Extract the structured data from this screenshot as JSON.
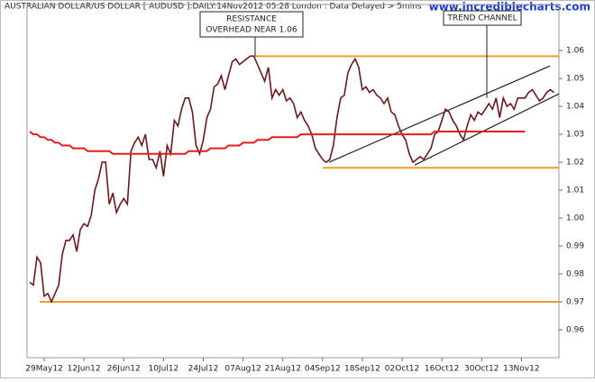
{
  "chart_data": {
    "type": "line",
    "title": "AUSTRALIAN DOLLAR/US DOLLAR [ AUDUSD ]:DAILY:14Nov2012 05:28 London : Data Delayed > 5mins",
    "watermark": "www.incrediblecharts.com",
    "categories": [
      null,
      null,
      null,
      null,
      "29May12",
      null,
      null,
      null,
      null,
      null,
      null,
      null,
      null,
      null,
      null,
      "12Jun12",
      null,
      null,
      null,
      null,
      null,
      null,
      null,
      null,
      null,
      null,
      "26Jun12",
      null,
      null,
      null,
      null,
      null,
      null,
      null,
      null,
      null,
      null,
      "10Jul12",
      null,
      null,
      null,
      null,
      null,
      null,
      null,
      null,
      null,
      null,
      "24Jul12",
      null,
      null,
      null,
      null,
      null,
      null,
      null,
      null,
      null,
      null,
      "07Aug12",
      null,
      null,
      null,
      null,
      null,
      null,
      null,
      null,
      null,
      null,
      "21Aug12",
      null,
      null,
      null,
      null,
      null,
      null,
      null,
      null,
      null,
      null,
      "04Sep12",
      null,
      null,
      null,
      null,
      null,
      null,
      null,
      null,
      null,
      null,
      "18Sep12",
      null,
      null,
      null,
      null,
      null,
      null,
      null,
      null,
      null,
      null,
      "02Oct12",
      null,
      null,
      null,
      null,
      null,
      null,
      null,
      null,
      null,
      null,
      "16Oct12",
      null,
      null,
      null,
      null,
      null,
      null,
      null,
      null,
      null,
      null,
      "30Oct12",
      null,
      null,
      null,
      null,
      null,
      null,
      null,
      null,
      null,
      null,
      "13Nov12",
      null,
      null,
      null,
      null,
      null,
      null,
      null,
      null,
      null
    ],
    "series": [
      {
        "color": "#6b1a1a",
        "values": [
          0.977,
          0.976,
          0.986,
          0.984,
          0.972,
          0.973,
          0.97,
          0.973,
          0.976,
          0.987,
          0.992,
          0.992,
          0.994,
          0.988,
          0.996,
          0.998,
          0.997,
          1.001,
          1.01,
          1.014,
          1.02,
          1.02,
          1.005,
          1.009,
          1.002,
          1.005,
          1.007,
          1.005,
          1.024,
          1.027,
          1.029,
          1.026,
          1.03,
          1.021,
          1.021,
          1.018,
          1.024,
          1.015,
          1.026,
          1.023,
          1.035,
          1.033,
          1.039,
          1.043,
          1.043,
          1.038,
          1.026,
          1.023,
          1.028,
          1.036,
          1.039,
          1.047,
          1.048,
          1.051,
          1.046,
          1.051,
          1.056,
          1.057,
          1.055,
          1.056,
          1.057,
          1.058,
          1.058,
          1.055,
          1.052,
          1.049,
          1.054,
          1.043,
          1.046,
          1.044,
          1.046,
          1.042,
          1.043,
          1.041,
          1.036,
          1.038,
          1.035,
          1.033,
          1.03,
          1.025,
          1.023,
          1.021,
          1.02,
          1.021,
          1.026,
          1.036,
          1.043,
          1.044,
          1.052,
          1.055,
          1.057,
          1.054,
          1.046,
          1.047,
          1.045,
          1.046,
          1.044,
          1.043,
          1.041,
          1.043,
          1.038,
          1.037,
          1.033,
          1.03,
          1.028,
          1.023,
          1.02,
          1.021,
          1.022,
          1.021,
          1.023,
          1.025,
          1.03,
          1.031,
          1.035,
          1.039,
          1.038,
          1.035,
          1.033,
          1.03,
          1.028,
          1.033,
          1.037,
          1.035,
          1.038,
          1.037,
          1.039,
          1.041,
          1.039,
          1.043,
          1.036,
          1.043,
          1.04,
          1.041,
          1.039,
          1.043,
          1.043,
          1.043,
          1.045,
          1.046,
          1.044,
          1.042,
          1.043,
          1.045,
          1.046,
          1.045
        ]
      },
      {
        "color": "#e01e1e",
        "values": [
          1.031,
          1.03,
          1.03,
          1.029,
          1.029,
          1.028,
          1.028,
          1.027,
          1.027,
          1.026,
          1.026,
          1.026,
          1.025,
          1.025,
          1.025,
          1.025,
          1.024,
          1.024,
          1.024,
          1.024,
          1.024,
          1.024,
          1.024,
          1.023,
          1.023,
          1.023,
          1.023,
          1.023,
          1.023,
          1.023,
          1.023,
          1.023,
          1.023,
          1.023,
          1.023,
          1.023,
          1.023,
          1.023,
          1.023,
          1.023,
          1.023,
          1.023,
          1.023,
          1.023,
          1.024,
          1.024,
          1.024,
          1.024,
          1.024,
          1.024,
          1.025,
          1.025,
          1.025,
          1.025,
          1.025,
          1.026,
          1.026,
          1.026,
          1.026,
          1.027,
          1.027,
          1.027,
          1.027,
          1.028,
          1.028,
          1.028,
          1.028,
          1.029,
          1.029,
          1.029,
          1.029,
          1.029,
          1.029,
          1.029,
          1.029,
          1.03,
          1.03,
          1.03,
          1.03,
          1.03,
          1.03,
          1.03,
          1.03,
          1.03,
          1.03,
          1.03,
          1.03,
          1.03,
          1.03,
          1.03,
          1.03,
          1.03,
          1.03,
          1.03,
          1.03,
          1.03,
          1.03,
          1.03,
          1.03,
          1.03,
          1.03,
          1.03,
          1.03,
          1.03,
          1.03,
          1.03,
          1.03,
          1.03,
          1.03,
          1.03,
          1.03,
          1.03,
          1.031,
          1.031,
          1.031,
          1.031,
          1.031,
          1.031,
          1.031,
          1.031,
          1.031,
          1.031,
          1.031,
          1.031,
          1.031,
          1.031,
          1.031,
          1.031,
          1.031,
          1.031,
          1.031,
          1.031,
          1.031,
          1.031,
          1.031,
          1.031,
          1.031,
          1.031,
          null,
          null,
          null,
          null,
          null,
          null,
          null,
          null
        ]
      }
    ],
    "hlines": [
      {
        "value": 1.058
      },
      {
        "value": 1.018
      },
      {
        "value": 0.97
      }
    ],
    "hline_color": "#f29a2e",
    "trendlines": [
      [
        1.02,
        1.0545
      ],
      [
        1.019,
        1.0445
      ]
    ],
    "trend_color": "#222222",
    "annotations": [
      {
        "lines": [
          "RESISTANCE",
          "OVERHEAD NEAR 1.06"
        ],
        "value": 1.058
      },
      {
        "lines": [
          "TREND CHANNEL"
        ],
        "value": 1.043
      }
    ],
    "ylim": [
      0.95,
      1.0765
    ],
    "yticks": [
      0.96,
      0.97,
      0.98,
      0.99,
      {
        "value": 1,
        "label": "1.00"
      },
      1.01,
      1.02,
      1.03,
      1.04,
      1.05,
      1.06
    ]
  }
}
